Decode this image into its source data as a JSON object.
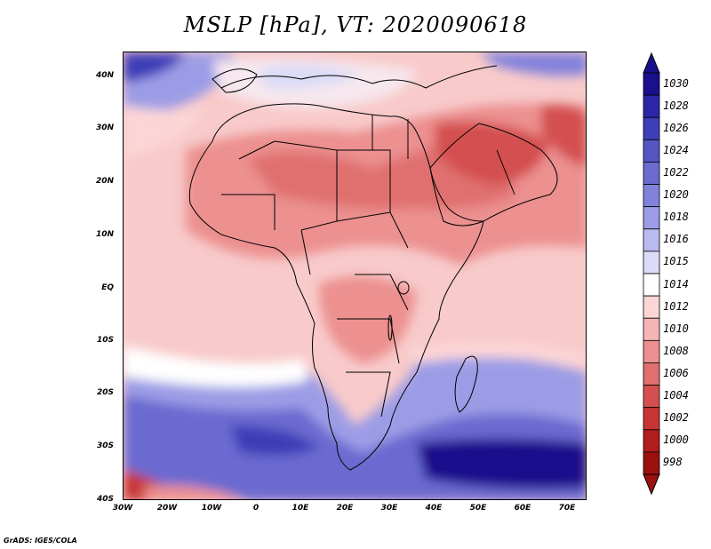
{
  "title": "MSLP [hPa], VT: 2020090618",
  "footer": "GrADS: IGES/COLA",
  "axes": {
    "lat_labels": [
      "40N",
      "30N",
      "20N",
      "10N",
      "EQ",
      "10S",
      "20S",
      "30S",
      "40S"
    ],
    "lon_labels": [
      "30W",
      "20W",
      "10W",
      "0",
      "10E",
      "20E",
      "30E",
      "40E",
      "50E",
      "60E",
      "70E"
    ]
  },
  "colorbar": {
    "levels": [
      "1030",
      "1028",
      "1026",
      "1024",
      "1022",
      "1020",
      "1018",
      "1016",
      "1015",
      "1014",
      "1012",
      "1010",
      "1008",
      "1006",
      "1004",
      "1002",
      "1000",
      "998"
    ],
    "colors": [
      "#1a0f8c",
      "#2d25a8",
      "#3e3eb8",
      "#5555c4",
      "#6b6bd0",
      "#8282dc",
      "#9c9ce6",
      "#babaf0",
      "#dcdcf8",
      "#ffffff",
      "#fcd6d6",
      "#f6b4b4",
      "#ec9090",
      "#e07070",
      "#d45050",
      "#c83434",
      "#b21c1c",
      "#9c1010"
    ]
  },
  "colors": {
    "land_border": "#000000",
    "background": "#ffffff"
  }
}
